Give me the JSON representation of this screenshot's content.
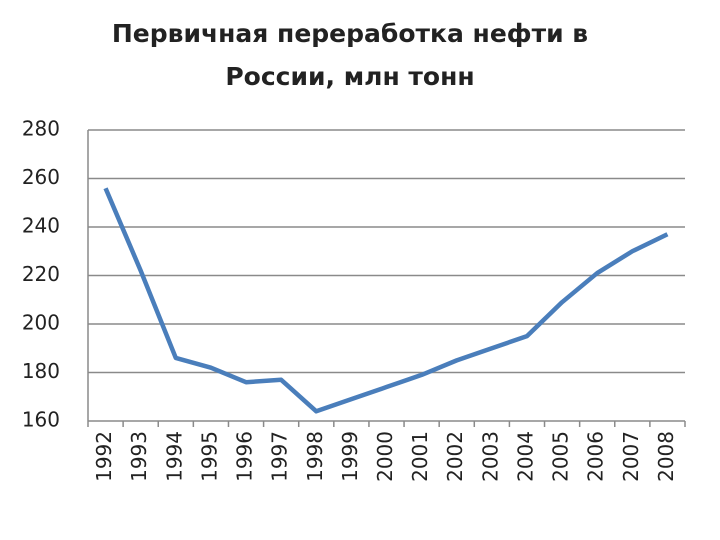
{
  "chart_data": {
    "type": "line",
    "title": "Первичная переработка нефти в России, млн тонн",
    "categories": [
      "1992",
      "1993",
      "1994",
      "1995",
      "1996",
      "1997",
      "1998",
      "1999",
      "2000",
      "2001",
      "2002",
      "2003",
      "2004",
      "2005",
      "2006",
      "2007",
      "2008"
    ],
    "values": [
      256,
      222,
      186,
      182,
      176,
      177,
      164,
      169,
      174,
      179,
      185,
      190,
      195,
      209,
      221,
      230,
      237
    ],
    "color": "#4a7ebb",
    "ylim": [
      160,
      280
    ],
    "yticks": [
      160,
      180,
      200,
      220,
      240,
      260,
      280
    ],
    "grid": true
  }
}
